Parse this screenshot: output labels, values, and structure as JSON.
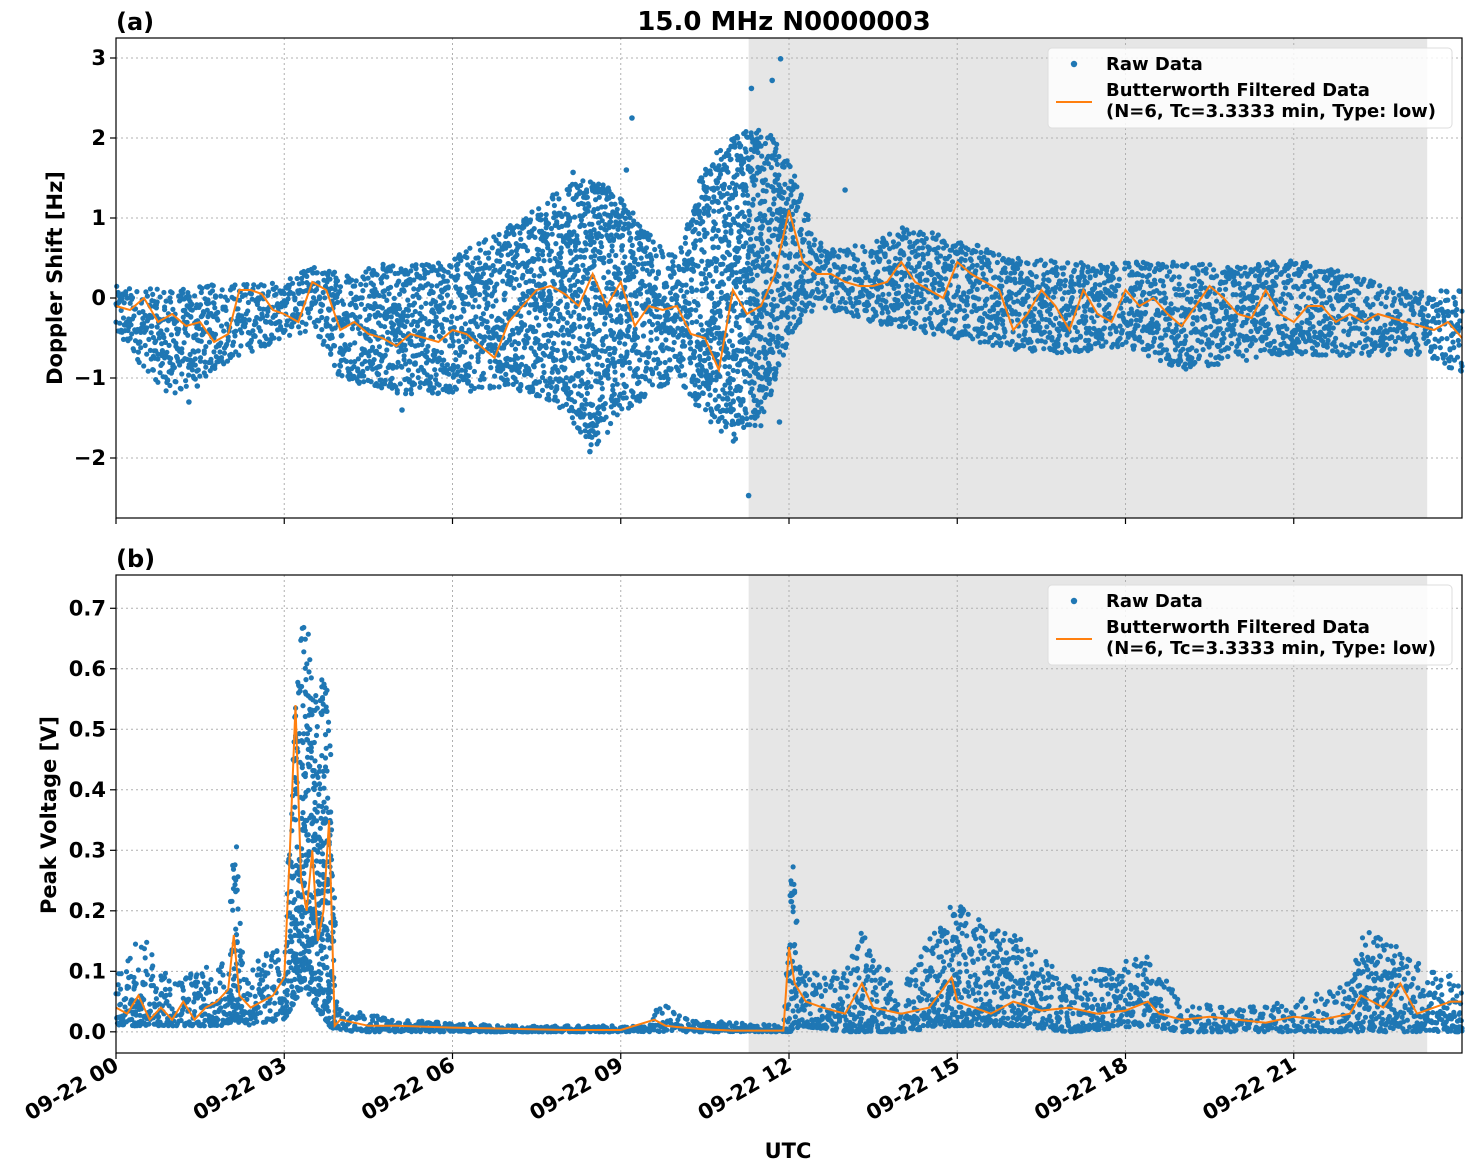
{
  "figure": {
    "title": "15.0 MHz N0000003",
    "xlabel": "UTC",
    "colors": {
      "raw": "#1f77b4",
      "filtered": "#ff7f0e",
      "shade": "#e6e6e6",
      "grid": "#b0b0b0"
    },
    "shaded_interval_hours": [
      11.28,
      23.38
    ],
    "x_range_hours": [
      0,
      24
    ],
    "x_ticks": [
      {
        "hour": 0,
        "label": "09-22 00"
      },
      {
        "hour": 3,
        "label": "09-22 03"
      },
      {
        "hour": 6,
        "label": "09-22 06"
      },
      {
        "hour": 9,
        "label": "09-22 09"
      },
      {
        "hour": 12,
        "label": "09-22 12"
      },
      {
        "hour": 15,
        "label": "09-22 15"
      },
      {
        "hour": 18,
        "label": "09-22 18"
      },
      {
        "hour": 21,
        "label": "09-22 21"
      }
    ]
  },
  "legend": {
    "raw_label": "Raw Data",
    "filtered_label_line1": "Butterworth Filtered Data",
    "filtered_label_line2": "(N=6, Tc=3.3333 min, Type: low)"
  },
  "chart_data": [
    {
      "type": "scatter+line",
      "panel": "(a)",
      "title": "15.0 MHz N0000003",
      "xlabel": "",
      "ylabel": "Doppler Shift [Hz]",
      "ylim": [
        -2.75,
        3.25
      ],
      "y_ticks": [
        {
          "v": 3,
          "label": "3"
        },
        {
          "v": 2,
          "label": "2"
        },
        {
          "v": 1,
          "label": "1"
        },
        {
          "v": 0,
          "label": "0"
        },
        {
          "v": -1,
          "label": "−1"
        },
        {
          "v": -2,
          "label": "−2"
        }
      ],
      "grid": true,
      "legend_position": "top-right",
      "series": [
        {
          "name": "Butterworth Filtered Data",
          "x_hours": [
            0,
            0.25,
            0.5,
            0.75,
            1,
            1.25,
            1.5,
            1.75,
            2,
            2.2,
            2.4,
            2.6,
            2.8,
            3,
            3.25,
            3.5,
            3.75,
            4,
            4.25,
            4.5,
            4.75,
            5,
            5.25,
            5.5,
            5.75,
            6,
            6.25,
            6.5,
            6.75,
            7,
            7.25,
            7.5,
            7.75,
            8,
            8.25,
            8.5,
            8.75,
            9,
            9.25,
            9.5,
            9.75,
            10,
            10.25,
            10.5,
            10.75,
            11,
            11.25,
            11.5,
            11.75,
            12,
            12.25,
            12.5,
            12.75,
            13,
            13.25,
            13.5,
            13.75,
            14,
            14.25,
            14.5,
            14.75,
            15,
            15.25,
            15.5,
            15.75,
            16,
            16.25,
            16.5,
            16.75,
            17,
            17.25,
            17.5,
            17.75,
            18,
            18.25,
            18.5,
            18.75,
            19,
            19.25,
            19.5,
            19.75,
            20,
            20.25,
            20.5,
            20.75,
            21,
            21.25,
            21.5,
            21.75,
            22,
            22.25,
            22.5,
            22.75,
            23,
            23.25,
            23.5,
            23.75,
            24
          ],
          "y": [
            -0.1,
            -0.15,
            0,
            -0.3,
            -0.2,
            -0.35,
            -0.3,
            -0.55,
            -0.45,
            0.1,
            0.1,
            0.05,
            -0.15,
            -0.2,
            -0.3,
            0.2,
            0.1,
            -0.4,
            -0.3,
            -0.45,
            -0.5,
            -0.6,
            -0.45,
            -0.5,
            -0.55,
            -0.4,
            -0.45,
            -0.6,
            -0.75,
            -0.3,
            -0.1,
            0.1,
            0.15,
            0.05,
            -0.1,
            0.3,
            -0.1,
            0.2,
            -0.35,
            -0.1,
            -0.15,
            -0.1,
            -0.45,
            -0.5,
            -0.9,
            0.1,
            -0.2,
            -0.1,
            0.3,
            1.1,
            0.45,
            0.3,
            0.3,
            0.2,
            0.15,
            0.15,
            0.2,
            0.45,
            0.2,
            0.1,
            0.0,
            0.45,
            0.3,
            0.2,
            0.1,
            -0.4,
            -0.2,
            0.1,
            -0.1,
            -0.4,
            0.1,
            -0.2,
            -0.3,
            0.1,
            -0.1,
            0.0,
            -0.2,
            -0.35,
            -0.1,
            0.15,
            0.0,
            -0.2,
            -0.25,
            0.1,
            -0.2,
            -0.3,
            -0.1,
            -0.1,
            -0.3,
            -0.2,
            -0.3,
            -0.2,
            -0.25,
            -0.3,
            -0.35,
            -0.4,
            -0.3,
            -0.5
          ]
        },
        {
          "name": "Raw Data",
          "envelope": [
            {
              "x": 0,
              "low": -0.5,
              "high": 0.15
            },
            {
              "x": 1,
              "low": -1.25,
              "high": 0.1
            },
            {
              "x": 2,
              "low": -0.8,
              "high": 0.2
            },
            {
              "x": 3,
              "low": -0.5,
              "high": 0.2
            },
            {
              "x": 3.5,
              "low": -0.4,
              "high": 0.4
            },
            {
              "x": 4,
              "low": -1.0,
              "high": 0.35
            },
            {
              "x": 5,
              "low": -1.2,
              "high": 0.45
            },
            {
              "x": 6,
              "low": -1.2,
              "high": 0.5
            },
            {
              "x": 7,
              "low": -1.1,
              "high": 0.9
            },
            {
              "x": 8,
              "low": -1.4,
              "high": 1.4
            },
            {
              "x": 8.5,
              "low": -1.9,
              "high": 1.5
            },
            {
              "x": 9,
              "low": -1.5,
              "high": 1.3
            },
            {
              "x": 9.5,
              "low": -1.2,
              "high": 0.8
            },
            {
              "x": 10,
              "low": -1.0,
              "high": 0.5
            },
            {
              "x": 10.5,
              "low": -1.5,
              "high": 1.7
            },
            {
              "x": 11,
              "low": -1.8,
              "high": 2.0
            },
            {
              "x": 11.5,
              "low": -1.6,
              "high": 2.2
            },
            {
              "x": 12,
              "low": -0.5,
              "high": 1.75
            },
            {
              "x": 12.5,
              "low": -0.1,
              "high": 0.7
            },
            {
              "x": 13,
              "low": -0.2,
              "high": 0.6
            },
            {
              "x": 14,
              "low": -0.4,
              "high": 0.9
            },
            {
              "x": 15,
              "low": -0.5,
              "high": 0.75
            },
            {
              "x": 16,
              "low": -0.65,
              "high": 0.5
            },
            {
              "x": 17,
              "low": -0.7,
              "high": 0.45
            },
            {
              "x": 18,
              "low": -0.6,
              "high": 0.45
            },
            {
              "x": 19,
              "low": -0.9,
              "high": 0.45
            },
            {
              "x": 20,
              "low": -0.8,
              "high": 0.4
            },
            {
              "x": 21,
              "low": -0.7,
              "high": 0.5
            },
            {
              "x": 22,
              "low": -0.75,
              "high": 0.3
            },
            {
              "x": 23,
              "low": -0.7,
              "high": 0.1
            },
            {
              "x": 24,
              "low": -0.95,
              "high": 0.1
            }
          ],
          "outliers": [
            {
              "x": 1.3,
              "y": -1.3
            },
            {
              "x": 1.45,
              "y": -1.1
            },
            {
              "x": 5.1,
              "y": -1.4
            },
            {
              "x": 8.15,
              "y": 1.57
            },
            {
              "x": 8.45,
              "y": -1.92
            },
            {
              "x": 9.2,
              "y": 2.25
            },
            {
              "x": 9.1,
              "y": 1.6
            },
            {
              "x": 8.4,
              "y": -1.6
            },
            {
              "x": 11.33,
              "y": 2.62
            },
            {
              "x": 11.28,
              "y": -2.47
            },
            {
              "x": 11.7,
              "y": 2.72
            },
            {
              "x": 11.85,
              "y": 2.99
            },
            {
              "x": 11.83,
              "y": -1.55
            },
            {
              "x": 11.5,
              "y": 1.9
            },
            {
              "x": 13.0,
              "y": 1.35
            }
          ]
        }
      ]
    },
    {
      "type": "scatter+line",
      "panel": "(b)",
      "title": "",
      "xlabel": "UTC",
      "ylabel": "Peak Voltage [V]",
      "ylim": [
        -0.035,
        0.755
      ],
      "y_ticks": [
        {
          "v": 0.0,
          "label": "0.0"
        },
        {
          "v": 0.1,
          "label": "0.1"
        },
        {
          "v": 0.2,
          "label": "0.2"
        },
        {
          "v": 0.3,
          "label": "0.3"
        },
        {
          "v": 0.4,
          "label": "0.4"
        },
        {
          "v": 0.5,
          "label": "0.5"
        },
        {
          "v": 0.6,
          "label": "0.6"
        },
        {
          "v": 0.7,
          "label": "0.7"
        }
      ],
      "grid": true,
      "legend_position": "top-right",
      "series": [
        {
          "name": "Butterworth Filtered Data",
          "x_hours": [
            0,
            0.2,
            0.4,
            0.6,
            0.8,
            1,
            1.2,
            1.4,
            1.6,
            1.8,
            2,
            2.1,
            2.2,
            2.4,
            2.6,
            2.8,
            3,
            3.1,
            3.2,
            3.3,
            3.4,
            3.5,
            3.6,
            3.7,
            3.8,
            3.9,
            4,
            4.5,
            5,
            6,
            7,
            8,
            9,
            9.6,
            9.8,
            10,
            10.5,
            11,
            11.5,
            11.9,
            12.0,
            12.1,
            12.3,
            12.6,
            13,
            13.3,
            13.5,
            14,
            14.5,
            14.9,
            15,
            15.3,
            15.6,
            16,
            16.5,
            17,
            17.5,
            18,
            18.4,
            18.6,
            19,
            19.5,
            20,
            20.5,
            21,
            21.5,
            22,
            22.2,
            22.6,
            22.9,
            23.2,
            23.5,
            23.8,
            24
          ],
          "y": [
            0.04,
            0.03,
            0.06,
            0.02,
            0.04,
            0.02,
            0.05,
            0.02,
            0.04,
            0.05,
            0.07,
            0.16,
            0.06,
            0.04,
            0.05,
            0.06,
            0.09,
            0.3,
            0.54,
            0.25,
            0.2,
            0.3,
            0.15,
            0.2,
            0.35,
            0.01,
            0.02,
            0.01,
            0.01,
            0.007,
            0.005,
            0.003,
            0.003,
            0.02,
            0.01,
            0.008,
            0.004,
            0.002,
            0.002,
            0.002,
            0.14,
            0.08,
            0.05,
            0.04,
            0.03,
            0.08,
            0.04,
            0.03,
            0.04,
            0.09,
            0.05,
            0.04,
            0.03,
            0.05,
            0.035,
            0.04,
            0.03,
            0.035,
            0.05,
            0.03,
            0.02,
            0.025,
            0.02,
            0.015,
            0.025,
            0.02,
            0.03,
            0.06,
            0.04,
            0.08,
            0.03,
            0.04,
            0.05,
            0.05
          ]
        },
        {
          "name": "Raw Data",
          "envelope": [
            {
              "x": 0,
              "low": 0.01,
              "high": 0.09
            },
            {
              "x": 0.4,
              "low": 0.01,
              "high": 0.17
            },
            {
              "x": 1,
              "low": 0.01,
              "high": 0.09
            },
            {
              "x": 2,
              "low": 0.01,
              "high": 0.12
            },
            {
              "x": 2.1,
              "low": 0.02,
              "high": 0.37
            },
            {
              "x": 2.3,
              "low": 0.01,
              "high": 0.11
            },
            {
              "x": 3.0,
              "low": 0.02,
              "high": 0.15
            },
            {
              "x": 3.2,
              "low": 0.05,
              "high": 0.55
            },
            {
              "x": 3.35,
              "low": 0.08,
              "high": 0.72
            },
            {
              "x": 3.5,
              "low": 0.05,
              "high": 0.6
            },
            {
              "x": 3.8,
              "low": 0.01,
              "high": 0.57
            },
            {
              "x": 3.95,
              "low": 0.0,
              "high": 0.04
            },
            {
              "x": 5,
              "low": 0.0,
              "high": 0.02
            },
            {
              "x": 7,
              "low": 0.0,
              "high": 0.01
            },
            {
              "x": 9.5,
              "low": 0.0,
              "high": 0.01
            },
            {
              "x": 9.7,
              "low": 0.0,
              "high": 0.05
            },
            {
              "x": 10.2,
              "low": 0.0,
              "high": 0.02
            },
            {
              "x": 11.9,
              "low": 0.0,
              "high": 0.01
            },
            {
              "x": 12.05,
              "low": 0.0,
              "high": 0.31
            },
            {
              "x": 12.2,
              "low": 0.01,
              "high": 0.1
            },
            {
              "x": 13,
              "low": 0.0,
              "high": 0.1
            },
            {
              "x": 13.3,
              "low": 0.0,
              "high": 0.17
            },
            {
              "x": 14,
              "low": 0.0,
              "high": 0.07
            },
            {
              "x": 14.9,
              "low": 0.01,
              "high": 0.22
            },
            {
              "x": 15.6,
              "low": 0.01,
              "high": 0.17
            },
            {
              "x": 16.1,
              "low": 0.01,
              "high": 0.16
            },
            {
              "x": 17,
              "low": 0.0,
              "high": 0.09
            },
            {
              "x": 18.4,
              "low": 0.01,
              "high": 0.13
            },
            {
              "x": 19,
              "low": 0.0,
              "high": 0.05
            },
            {
              "x": 20,
              "low": 0.0,
              "high": 0.04
            },
            {
              "x": 21,
              "low": 0.0,
              "high": 0.05
            },
            {
              "x": 22,
              "low": 0.0,
              "high": 0.09
            },
            {
              "x": 22.2,
              "low": 0.0,
              "high": 0.17
            },
            {
              "x": 22.7,
              "low": 0.0,
              "high": 0.15
            },
            {
              "x": 23.5,
              "low": 0.0,
              "high": 0.1
            },
            {
              "x": 24,
              "low": 0.0,
              "high": 0.09
            }
          ]
        }
      ]
    }
  ]
}
